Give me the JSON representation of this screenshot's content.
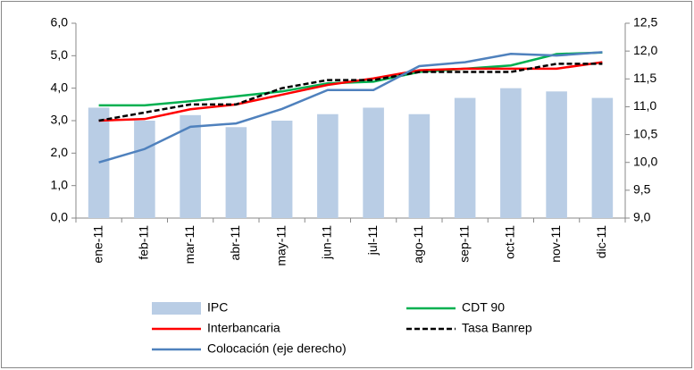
{
  "chart_data": {
    "type": "bar",
    "categories": [
      "ene-11",
      "feb-11",
      "mar-11",
      "abr-11",
      "may-11",
      "jun-11",
      "jul-11",
      "ago-11",
      "sep-11",
      "oct-11",
      "nov-11",
      "dic-11"
    ],
    "series": [
      {
        "name": "IPC",
        "type": "bar",
        "color": "#b9cde5",
        "values": [
          3.4,
          3.0,
          3.17,
          2.8,
          3.0,
          3.2,
          3.4,
          3.2,
          3.7,
          4.0,
          3.9,
          3.7
        ]
      },
      {
        "name": "CDT 90",
        "type": "line",
        "color": "#00b050",
        "values": [
          3.47,
          3.47,
          3.6,
          3.75,
          3.9,
          4.15,
          4.2,
          4.5,
          4.6,
          4.7,
          5.05,
          5.1
        ]
      },
      {
        "name": "Interbancaria",
        "type": "line",
        "color": "#ff0000",
        "values": [
          3.0,
          3.05,
          3.35,
          3.5,
          3.8,
          4.1,
          4.3,
          4.55,
          4.6,
          4.6,
          4.6,
          4.8
        ]
      },
      {
        "name": "Tasa Banrep",
        "type": "line",
        "color": "#000000",
        "dash": true,
        "values": [
          3.0,
          3.25,
          3.5,
          3.5,
          4.0,
          4.25,
          4.25,
          4.5,
          4.5,
          4.5,
          4.75,
          4.75
        ]
      },
      {
        "name": "Colocación (eje derecho)",
        "type": "line",
        "color": "#4f81bd",
        "axis": "y2",
        "values": [
          10.0,
          10.24,
          10.64,
          10.7,
          10.96,
          11.3,
          11.3,
          11.73,
          11.8,
          11.95,
          11.92,
          11.98
        ]
      }
    ],
    "ylim": [
      0,
      6
    ],
    "yticks": [
      {
        "value": 0,
        "label": "0,0"
      },
      {
        "value": 1,
        "label": "1,0"
      },
      {
        "value": 2,
        "label": "2,0"
      },
      {
        "value": 3,
        "label": "3,0"
      },
      {
        "value": 4,
        "label": "4,0"
      },
      {
        "value": 5,
        "label": "5,0"
      },
      {
        "value": 6,
        "label": "6,0"
      }
    ],
    "y2lim": [
      9,
      12.5
    ],
    "y2ticks": [
      {
        "value": 9,
        "label": "9,0"
      },
      {
        "value": 9.5,
        "label": "9,5"
      },
      {
        "value": 10,
        "label": "10,0"
      },
      {
        "value": 10.5,
        "label": "10,5"
      },
      {
        "value": 11,
        "label": "11,0"
      },
      {
        "value": 11.5,
        "label": "11,5"
      },
      {
        "value": 12,
        "label": "12,0"
      },
      {
        "value": 12.5,
        "label": "12,5"
      }
    ],
    "grid": false,
    "legend": "bottom"
  }
}
